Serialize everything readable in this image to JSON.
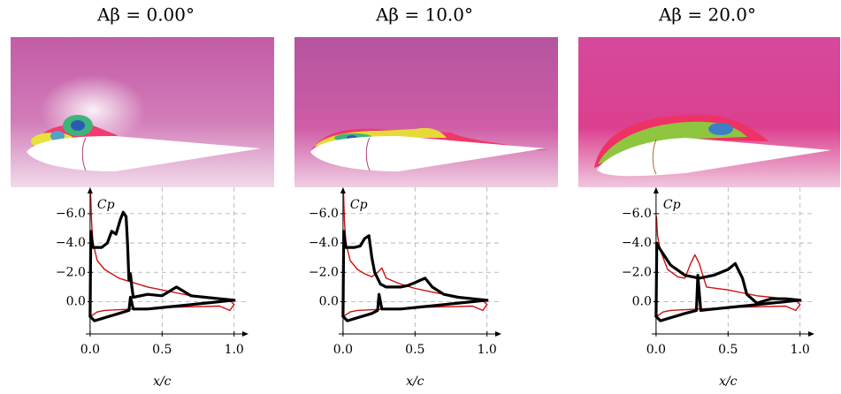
{
  "chart_data": [
    {
      "type": "line",
      "title": "Aβ = 0.00°",
      "ylabel": "Cp",
      "xlabel": "x/c",
      "xlim": [
        -0.03,
        1.1
      ],
      "ylim": [
        -7.8,
        2.2
      ],
      "grid": true,
      "xticks": [
        {
          "value": 0,
          "label": "0.0"
        },
        {
          "value": 0.5,
          "label": "0.5"
        },
        {
          "value": 1,
          "label": "1.0"
        }
      ],
      "yticks": [
        {
          "value": -6,
          "label": "−6.0"
        },
        {
          "value": -4,
          "label": "−4.0"
        },
        {
          "value": -2,
          "label": "−2.0"
        },
        {
          "value": 0,
          "label": "0.0"
        }
      ],
      "series": [
        {
          "color": "#cc1111",
          "x": [
            0.003,
            0.01,
            0.02,
            0.05,
            0.1,
            0.15,
            0.2,
            0.3,
            0.4,
            0.5,
            0.6,
            0.7,
            0.8,
            0.9,
            0.97,
            1.0
          ],
          "values": [
            -7.5,
            -5.5,
            -4.0,
            -2.8,
            -2.2,
            -1.9,
            -1.6,
            -1.3,
            -1.0,
            -0.8,
            -0.6,
            -0.4,
            -0.3,
            -0.2,
            -0.1,
            0.2
          ]
        },
        {
          "color": "#cc1111",
          "x": [
            0.003,
            0.02,
            0.05,
            0.1,
            0.3,
            0.5,
            0.7,
            0.9,
            0.97,
            1.0
          ],
          "values": [
            1.0,
            0.9,
            0.7,
            0.6,
            0.5,
            0.4,
            0.35,
            0.3,
            0.6,
            0.2
          ]
        },
        {
          "color": "#000000",
          "x": [
            0.0,
            0.005,
            0.02,
            0.08,
            0.12,
            0.15,
            0.18,
            0.21,
            0.23,
            0.25,
            0.26,
            0.27,
            0.28,
            0.29,
            0.3,
            0.4,
            0.5,
            0.6,
            0.7,
            0.8,
            0.9,
            1.0
          ],
          "values": [
            1.0,
            -4.8,
            -3.7,
            -3.7,
            -4.0,
            -4.8,
            -4.6,
            -5.6,
            -6.1,
            -5.8,
            -4.0,
            -1.5,
            -1.9,
            -1.0,
            -0.3,
            -0.5,
            -0.4,
            -1.0,
            -0.4,
            -0.3,
            -0.2,
            -0.1
          ]
        },
        {
          "color": "#000000",
          "x": [
            0.0,
            0.03,
            0.1,
            0.2,
            0.27,
            0.28,
            0.3,
            0.4,
            0.5,
            0.6,
            0.7,
            0.8,
            0.9,
            1.0
          ],
          "values": [
            1.0,
            1.3,
            1.1,
            0.8,
            0.6,
            -0.3,
            0.5,
            0.5,
            0.4,
            0.3,
            0.2,
            0.1,
            0.0,
            -0.1
          ]
        }
      ]
    },
    {
      "type": "line",
      "title": "Aβ = 10.0°",
      "ylabel": "Cp",
      "xlabel": "x/c",
      "xlim": [
        -0.03,
        1.1
      ],
      "ylim": [
        -7.8,
        2.2
      ],
      "grid": true,
      "xticks": [
        {
          "value": 0,
          "label": "0.0"
        },
        {
          "value": 0.5,
          "label": "0.5"
        },
        {
          "value": 1,
          "label": "1.0"
        }
      ],
      "yticks": [
        {
          "value": -6,
          "label": "−6.0"
        },
        {
          "value": -4,
          "label": "−4.0"
        },
        {
          "value": -2,
          "label": "−2.0"
        },
        {
          "value": 0,
          "label": "0.0"
        }
      ],
      "series": [
        {
          "color": "#cc1111",
          "x": [
            0.003,
            0.01,
            0.02,
            0.05,
            0.1,
            0.15,
            0.2,
            0.24,
            0.27,
            0.3,
            0.4,
            0.5,
            0.6,
            0.7,
            0.8,
            0.9,
            0.97,
            1.0
          ],
          "values": [
            -7.5,
            -5.5,
            -4.0,
            -2.8,
            -2.2,
            -1.9,
            -1.7,
            -2.0,
            -2.3,
            -1.6,
            -1.2,
            -0.9,
            -0.7,
            -0.5,
            -0.3,
            -0.2,
            -0.1,
            0.2
          ]
        },
        {
          "color": "#cc1111",
          "x": [
            0.003,
            0.02,
            0.05,
            0.1,
            0.3,
            0.5,
            0.7,
            0.9,
            0.97,
            1.0
          ],
          "values": [
            1.0,
            0.9,
            0.7,
            0.6,
            0.5,
            0.4,
            0.35,
            0.3,
            0.6,
            0.2
          ]
        },
        {
          "color": "#000000",
          "x": [
            0.0,
            0.005,
            0.02,
            0.08,
            0.12,
            0.15,
            0.18,
            0.2,
            0.22,
            0.26,
            0.3,
            0.4,
            0.45,
            0.5,
            0.57,
            0.62,
            0.7,
            0.8,
            0.9,
            1.0
          ],
          "values": [
            1.0,
            -4.8,
            -3.7,
            -3.7,
            -3.8,
            -4.3,
            -4.5,
            -3.0,
            -2.0,
            -1.2,
            -1.0,
            -1.0,
            -1.1,
            -1.3,
            -1.6,
            -1.0,
            -0.5,
            -0.3,
            -0.2,
            -0.1
          ]
        },
        {
          "color": "#000000",
          "x": [
            0.0,
            0.03,
            0.1,
            0.2,
            0.24,
            0.25,
            0.27,
            0.4,
            0.5,
            0.6,
            0.7,
            0.8,
            0.9,
            1.0
          ],
          "values": [
            1.0,
            1.3,
            1.1,
            0.8,
            0.6,
            -0.5,
            0.5,
            0.5,
            0.4,
            0.3,
            0.2,
            0.1,
            0.0,
            -0.1
          ]
        }
      ]
    },
    {
      "type": "line",
      "title": "Aβ = 20.0°",
      "ylabel": "Cp",
      "xlabel": "x/c",
      "xlim": [
        -0.03,
        1.1
      ],
      "ylim": [
        -7.8,
        2.2
      ],
      "grid": true,
      "xticks": [
        {
          "value": 0,
          "label": "0.0"
        },
        {
          "value": 0.5,
          "label": "0.5"
        },
        {
          "value": 1,
          "label": "1.0"
        }
      ],
      "yticks": [
        {
          "value": -6,
          "label": "−6.0"
        },
        {
          "value": -4,
          "label": "−4.0"
        },
        {
          "value": -2,
          "label": "−2.0"
        },
        {
          "value": 0,
          "label": "0.0"
        }
      ],
      "series": [
        {
          "color": "#cc1111",
          "x": [
            0.003,
            0.01,
            0.03,
            0.08,
            0.15,
            0.2,
            0.24,
            0.27,
            0.3,
            0.35,
            0.5,
            0.6,
            0.7,
            0.8,
            0.9,
            0.97,
            1.0
          ],
          "values": [
            -5.8,
            -4.5,
            -3.5,
            -2.2,
            -1.7,
            -1.6,
            -2.6,
            -3.2,
            -2.6,
            -1.0,
            -0.8,
            -0.6,
            -0.4,
            -0.3,
            -0.2,
            -0.1,
            0.2
          ]
        },
        {
          "color": "#cc1111",
          "x": [
            0.003,
            0.02,
            0.05,
            0.1,
            0.3,
            0.5,
            0.7,
            0.9,
            0.97,
            1.0
          ],
          "values": [
            1.0,
            0.9,
            0.7,
            0.6,
            0.5,
            0.4,
            0.35,
            0.3,
            0.6,
            0.2
          ]
        },
        {
          "color": "#000000",
          "x": [
            0.0,
            0.005,
            0.02,
            0.1,
            0.2,
            0.3,
            0.4,
            0.5,
            0.55,
            0.6,
            0.63,
            0.7,
            0.8,
            0.9,
            1.0
          ],
          "values": [
            1.0,
            -4.0,
            -3.7,
            -2.5,
            -1.8,
            -1.6,
            -1.8,
            -2.2,
            -2.6,
            -1.6,
            -0.5,
            0.1,
            -0.2,
            -0.2,
            -0.1
          ]
        },
        {
          "color": "#000000",
          "x": [
            0.0,
            0.03,
            0.1,
            0.2,
            0.28,
            0.29,
            0.31,
            0.4,
            0.5,
            0.6,
            0.7,
            0.8,
            0.9,
            1.0
          ],
          "values": [
            1.0,
            1.3,
            1.1,
            0.8,
            0.6,
            -1.8,
            0.6,
            0.5,
            0.4,
            0.3,
            0.2,
            0.1,
            0.0,
            -0.1
          ]
        }
      ]
    }
  ]
}
